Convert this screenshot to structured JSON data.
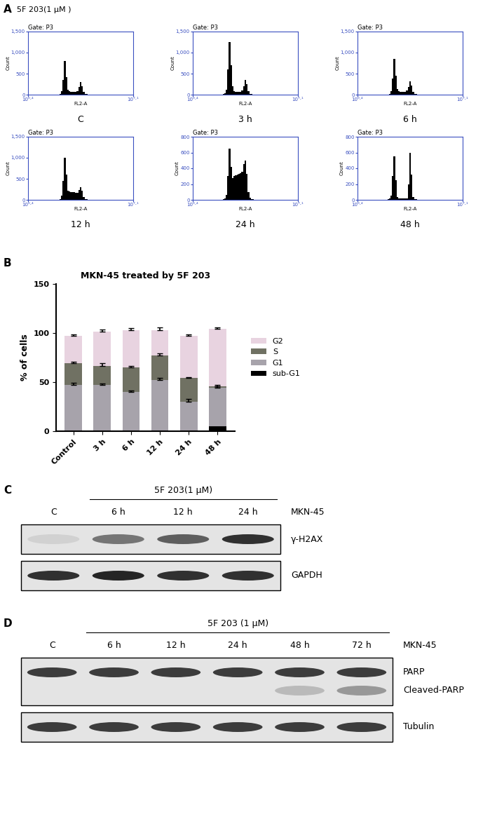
{
  "panel_A": {
    "letter": "A",
    "treatment": "5F 203(1 μM )",
    "gate": "Gate: P3",
    "x_label": "FL2-A",
    "y_label": "Count",
    "log": "x",
    "xlim": [
      2.5119,
      12589254.1
    ],
    "xticks": [
      {
        "value": 2.5119,
        "label": "10⁰·⁴"
      },
      {
        "value": 12589254.1,
        "label": "10⁷·¹"
      }
    ],
    "bins": [
      100,
      125.9,
      158.5,
      199.5,
      251.2,
      316.2,
      398.1,
      501.2,
      631,
      794.3,
      1000,
      1258.9,
      1584.9,
      1995.3,
      2511.9,
      3162.3,
      3981.1,
      5011.9,
      6309.6,
      7943.3,
      10000,
      12589.3,
      15848.9,
      19952.6,
      25118.9,
      31622.8,
      39810.7
    ],
    "histograms": [
      {
        "label": "C",
        "ylim": [
          0,
          1500
        ],
        "yticks": [
          0,
          500,
          {
            "value": 1000,
            "label": "1,000"
          },
          {
            "value": 1500,
            "label": "1,500"
          }
        ],
        "counts": [
          0,
          0,
          0,
          5,
          20,
          80,
          350,
          800,
          420,
          120,
          80,
          70,
          65,
          65,
          70,
          90,
          180,
          300,
          200,
          60,
          20,
          10,
          5,
          0,
          0,
          0
        ]
      },
      {
        "label": "3 h",
        "ylim": [
          0,
          1500
        ],
        "yticks": [
          0,
          500,
          {
            "value": 1000,
            "label": "1,000"
          },
          {
            "value": 1500,
            "label": "1,500"
          }
        ],
        "counts": [
          0,
          0,
          0,
          10,
          30,
          120,
          600,
          1250,
          700,
          200,
          90,
          75,
          70,
          70,
          75,
          100,
          200,
          350,
          250,
          80,
          25,
          10,
          5,
          0,
          0,
          0
        ]
      },
      {
        "label": "6 h",
        "ylim": [
          0,
          1500
        ],
        "yticks": [
          0,
          500,
          {
            "value": 1000,
            "label": "1,000"
          },
          {
            "value": 1500,
            "label": "1,500"
          }
        ],
        "counts": [
          0,
          0,
          0,
          5,
          20,
          80,
          380,
          850,
          450,
          130,
          85,
          75,
          70,
          70,
          75,
          95,
          190,
          310,
          210,
          60,
          20,
          10,
          5,
          0,
          0,
          0
        ]
      },
      {
        "label": "12 h",
        "ylim": [
          0,
          1500
        ],
        "yticks": [
          0,
          500,
          {
            "value": 1000,
            "label": "1,000"
          },
          {
            "value": 1500,
            "label": "1,500"
          }
        ],
        "counts": [
          0,
          0,
          0,
          5,
          25,
          100,
          450,
          1000,
          600,
          220,
          200,
          190,
          180,
          180,
          175,
          170,
          230,
          300,
          220,
          70,
          25,
          10,
          5,
          0,
          0,
          0
        ]
      },
      {
        "label": "24 h",
        "ylim": [
          0,
          800
        ],
        "yticks": [
          0,
          200,
          400,
          600,
          800
        ],
        "counts": [
          0,
          0,
          0,
          5,
          20,
          60,
          300,
          650,
          420,
          280,
          300,
          310,
          320,
          330,
          340,
          360,
          450,
          500,
          330,
          100,
          30,
          10,
          5,
          0,
          0,
          0
        ]
      },
      {
        "label": "48 h",
        "ylim": [
          0,
          800
        ],
        "yticks": [
          0,
          200,
          400,
          600,
          800
        ],
        "counts": [
          0,
          0,
          0,
          5,
          15,
          50,
          300,
          550,
          250,
          40,
          20,
          15,
          15,
          15,
          15,
          20,
          200,
          600,
          320,
          40,
          10,
          5,
          0,
          0,
          0,
          0
        ]
      }
    ]
  },
  "chart_data": {
    "type": "bar",
    "stacked": true,
    "annotations": [
      "B"
    ],
    "title": "MKN-45 treated by 5F 203",
    "y_label": "% of cells",
    "categories": [
      "Control",
      "3 h",
      "6 h",
      "12 h",
      "24 h",
      "48 h"
    ],
    "ylim": [
      0,
      150
    ],
    "yticks": [
      0,
      50,
      100,
      150
    ],
    "legend": "right",
    "series": [
      {
        "name": "sub-G1",
        "color": "#000000",
        "values": [
          1,
          0.5,
          0.5,
          0.5,
          1,
          5
        ]
      },
      {
        "name": "G1",
        "color": "#a7a3ab",
        "values": [
          46,
          47,
          39.5,
          51.5,
          29,
          39
        ],
        "errors": [
          2,
          1,
          1.5,
          2,
          3,
          1.5
        ]
      },
      {
        "name": "S",
        "color": "#707163",
        "values": [
          22,
          19,
          25,
          25,
          24,
          2
        ],
        "errors": [
          2,
          3,
          1.5,
          2,
          1,
          1
        ]
      },
      {
        "name": "G2",
        "color": "#e8d3e0",
        "values": [
          28,
          35,
          38,
          26,
          43,
          58
        ],
        "errors": [
          1.5,
          2,
          2,
          3,
          1.5,
          2
        ]
      }
    ]
  },
  "panel_C": {
    "letter": "C",
    "treatment": "5F 203(1 μM)",
    "cell_line": "MKN-45",
    "lanes": [
      "C",
      "6 h",
      "12 h",
      "24 h"
    ],
    "blots": [
      {
        "bands": [
          {
            "name": "γ-H2AX",
            "intensity": [
              0.2,
              0.6,
              0.7,
              0.9
            ]
          }
        ]
      },
      {
        "bands": [
          {
            "name": "GAPDH",
            "intensity": [
              0.9,
              0.95,
              0.9,
              0.9
            ]
          }
        ]
      }
    ]
  },
  "panel_D": {
    "letter": "D",
    "treatment": "5F 203 (1 μM)",
    "cell_line": "MKN-45",
    "lanes": [
      "C",
      "6 h",
      "12 h",
      "24 h",
      "48 h",
      "72 h"
    ],
    "blots": [
      {
        "bands": [
          {
            "name": "PARP",
            "intensity": [
              0.85,
              0.85,
              0.85,
              0.85,
              0.85,
              0.85
            ]
          },
          {
            "name": "Cleaved-PARP",
            "intensity": [
              0,
              0,
              0,
              0,
              0.3,
              0.45
            ]
          }
        ]
      },
      {
        "bands": [
          {
            "name": "Tubulin",
            "intensity": [
              0.85,
              0.85,
              0.85,
              0.85,
              0.85,
              0.85
            ]
          }
        ]
      }
    ]
  }
}
